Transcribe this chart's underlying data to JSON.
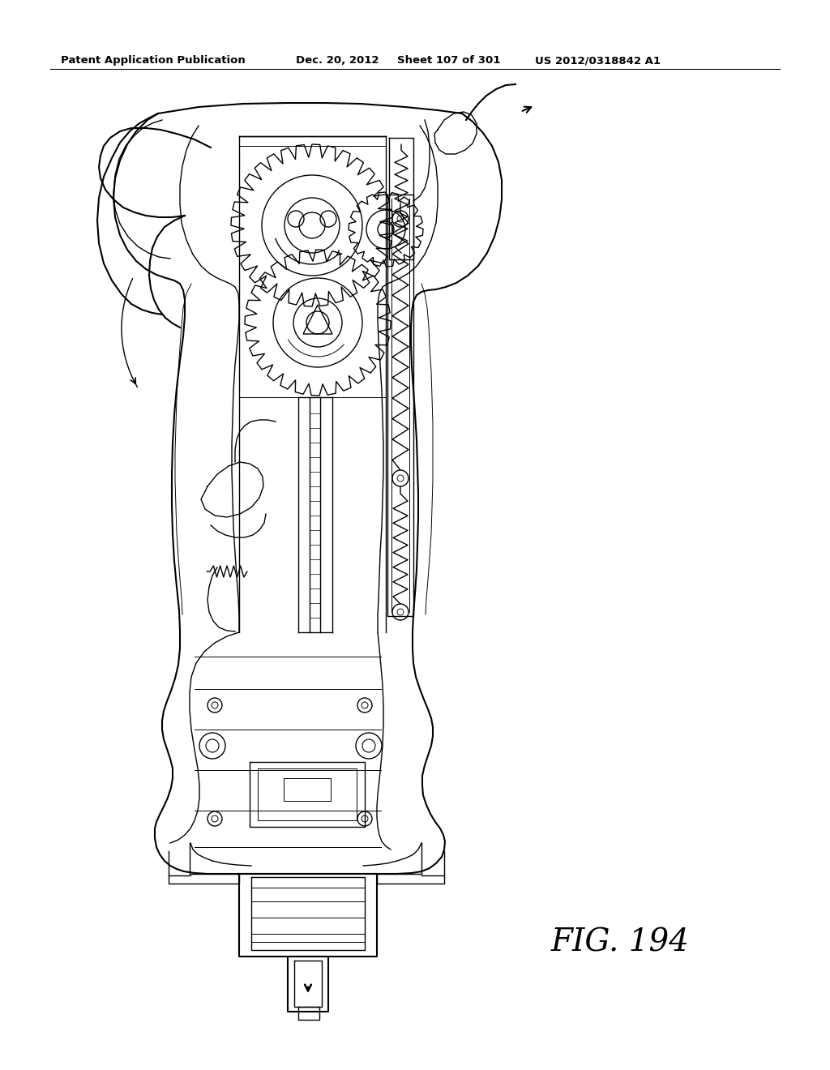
{
  "background_color": "#ffffff",
  "header_text": "Patent Application Publication",
  "header_date": "Dec. 20, 2012",
  "header_sheet": "Sheet 107 of 301",
  "header_patent": "US 2012/0318842 A1",
  "figure_label": "FIG. 194",
  "line_color": "#000000",
  "fig_width": 10.24,
  "fig_height": 13.2
}
